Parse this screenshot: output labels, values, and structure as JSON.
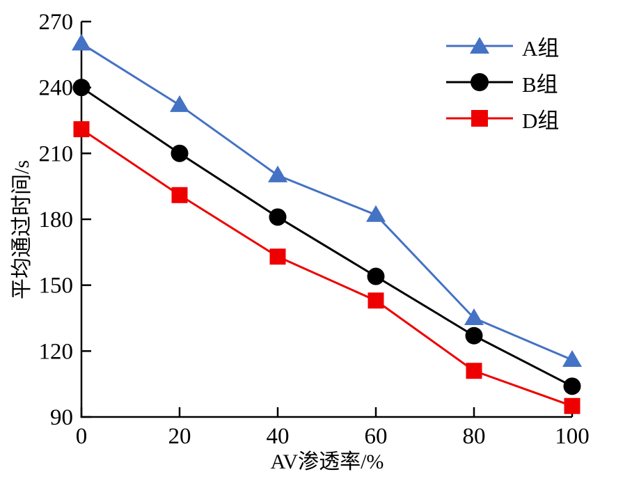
{
  "figure": {
    "background": "#ffffff",
    "axis_color": "#000000"
  },
  "chart_data": {
    "type": "line",
    "x": [
      0,
      20,
      40,
      60,
      80,
      100
    ],
    "series": [
      {
        "id": "a",
        "name": "A组",
        "marker": "triangle",
        "color": "#4472c4",
        "values": [
          260,
          232,
          200,
          182,
          135,
          116
        ]
      },
      {
        "id": "b",
        "name": "B组",
        "marker": "circle",
        "color": "#000000",
        "values": [
          240,
          210,
          181,
          154,
          127,
          104
        ]
      },
      {
        "id": "d",
        "name": "D组",
        "marker": "square",
        "color": "#ee0000",
        "values": [
          221,
          191,
          163,
          143,
          111,
          95
        ]
      }
    ],
    "xlabel": "AV渗透率/%",
    "ylabel": "平均通过时间/s",
    "xlim": [
      0,
      100
    ],
    "ylim": [
      90,
      270
    ],
    "xticks": [
      0,
      20,
      40,
      60,
      80,
      100
    ],
    "yticks": [
      90,
      120,
      150,
      180,
      210,
      240,
      270
    ],
    "grid": false,
    "spines": [
      "left",
      "bottom"
    ],
    "tick_direction": "in",
    "legend_position": "upper right"
  }
}
